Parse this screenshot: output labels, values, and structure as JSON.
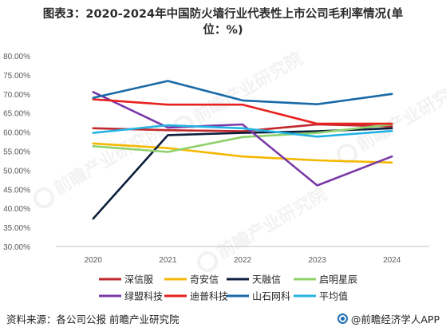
{
  "title_line1": "图表3：2020-2024年中国防火墙行业代表性上市公司毛利率情况(单",
  "title_line2": "位：%)",
  "watermark": "前瞻产业研究院",
  "footer": {
    "source": "资料来源：各公司公报 前瞻产业研究院",
    "brand": "@前瞻经济学人APP"
  },
  "chart_data": {
    "type": "line",
    "title": "图表3：2020-2024年中国防火墙行业代表性上市公司毛利率情况(单位：%)",
    "categories": [
      "2020",
      "2021",
      "2022",
      "2023",
      "2024"
    ],
    "ylim": [
      30,
      80
    ],
    "yticks": [
      30,
      35,
      40,
      45,
      50,
      55,
      60,
      65,
      70,
      75,
      80
    ],
    "ytick_labels": [
      "30.00%",
      "35.00%",
      "40.00%",
      "45.00%",
      "50.00%",
      "55.00%",
      "60.00%",
      "65.00%",
      "70.00%",
      "75.00%",
      "80.00%"
    ],
    "grid": false,
    "legend_position": "bottom",
    "series": [
      {
        "name": "深信服",
        "color": "#c0282d",
        "values": [
          61.0,
          60.5,
          60.2,
          62.0,
          61.5
        ]
      },
      {
        "name": "奇安信",
        "color": "#f5b800",
        "values": [
          57.0,
          55.8,
          53.6,
          52.6,
          52.0
        ]
      },
      {
        "name": "天融信",
        "color": "#0d1f3c",
        "values": [
          37.3,
          59.2,
          59.8,
          60.2,
          61.0
        ]
      },
      {
        "name": "启明星辰",
        "color": "#8fd16a",
        "values": [
          56.3,
          54.8,
          58.7,
          59.8,
          62.0
        ]
      },
      {
        "name": "绿盟科技",
        "color": "#7a3aa8",
        "values": [
          70.5,
          61.2,
          62.0,
          46.0,
          53.6
        ]
      },
      {
        "name": "迪普科技",
        "color": "#e8211f",
        "values": [
          68.6,
          67.2,
          67.2,
          62.2,
          62.2
        ]
      },
      {
        "name": "山石网科",
        "color": "#1a6aa8",
        "values": [
          69.0,
          73.4,
          68.3,
          67.3,
          70.0
        ]
      },
      {
        "name": "平均值",
        "color": "#24b4e3",
        "values": [
          59.8,
          61.8,
          61.0,
          58.8,
          60.3
        ]
      }
    ]
  }
}
